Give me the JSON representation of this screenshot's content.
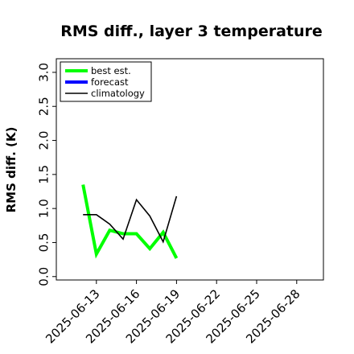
{
  "chart_data": {
    "type": "line",
    "title": "RMS diff., layer 3 temperature",
    "xlabel": "",
    "ylabel": "RMS diff. (K)",
    "x_ticks": [
      "2025-06-13",
      "2025-06-16",
      "2025-06-19",
      "2025-06-22",
      "2025-06-25",
      "2025-06-28"
    ],
    "highlighted_tick": "2025-06-19",
    "highlight_color": "#228b22",
    "xlim": [
      "2025-06-10",
      "2025-06-30"
    ],
    "ylim": [
      -0.05,
      3.2
    ],
    "y_ticks": [
      "0.0",
      "0.5",
      "1.0",
      "1.5",
      "2.0",
      "2.5",
      "3.0"
    ],
    "grid": false,
    "legend_placement": "top-left",
    "series": [
      {
        "name": "best est.",
        "color": "#00ff00",
        "x": [
          "2025-06-12",
          "2025-06-13",
          "2025-06-14",
          "2025-06-15",
          "2025-06-16",
          "2025-06-17",
          "2025-06-18",
          "2025-06-19"
        ],
        "y": [
          1.35,
          0.33,
          0.68,
          0.63,
          0.63,
          0.41,
          0.65,
          0.27
        ]
      },
      {
        "name": "forecast",
        "color": "#0000ff",
        "x": [],
        "y": []
      },
      {
        "name": "climatology",
        "color": "#000000",
        "x": [
          "2025-06-12",
          "2025-06-13",
          "2025-06-14",
          "2025-06-15",
          "2025-06-16",
          "2025-06-17",
          "2025-06-18",
          "2025-06-19"
        ],
        "y": [
          0.91,
          0.91,
          0.77,
          0.55,
          1.13,
          0.89,
          0.51,
          1.18
        ]
      }
    ]
  }
}
